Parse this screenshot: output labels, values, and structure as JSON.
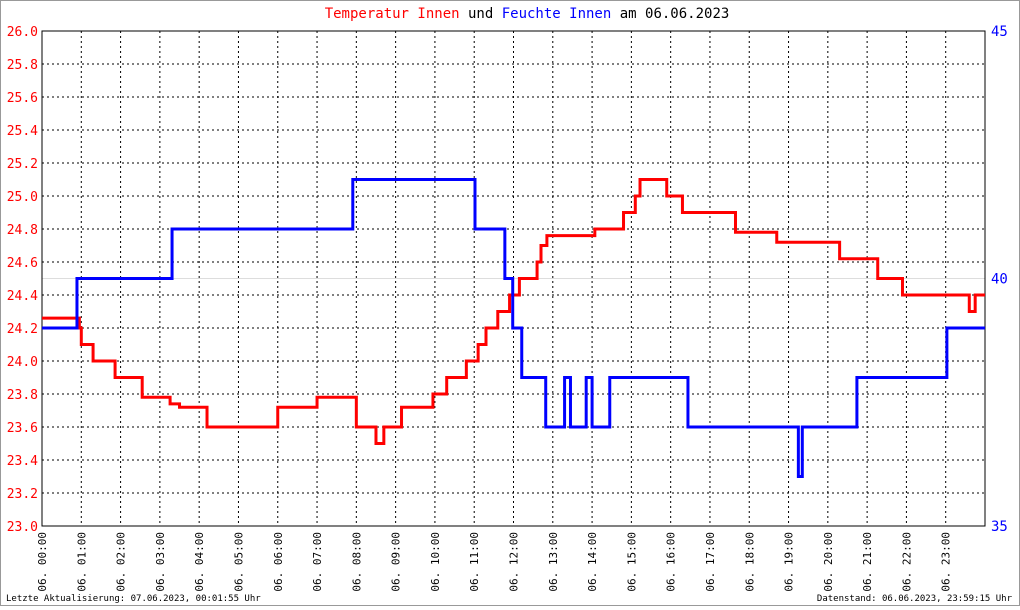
{
  "chart_data": {
    "type": "line",
    "title_joiner": "und",
    "title_suffix": "am 06.06.2023",
    "footer_left": "Letzte Aktualisierung: 07.06.2023, 00:01:55 Uhr",
    "footer_right": "Datenstand: 06.06.2023, 23:59:15 Uhr",
    "xlim": [
      0,
      24
    ],
    "xticks": [
      {
        "value": 0,
        "label": "06. 00:00"
      },
      {
        "value": 1,
        "label": "06. 01:00"
      },
      {
        "value": 2,
        "label": "06. 02:00"
      },
      {
        "value": 3,
        "label": "06. 03:00"
      },
      {
        "value": 4,
        "label": "06. 04:00"
      },
      {
        "value": 5,
        "label": "06. 05:00"
      },
      {
        "value": 6,
        "label": "06. 06:00"
      },
      {
        "value": 7,
        "label": "06. 07:00"
      },
      {
        "value": 8,
        "label": "06. 08:00"
      },
      {
        "value": 9,
        "label": "06. 09:00"
      },
      {
        "value": 10,
        "label": "06. 10:00"
      },
      {
        "value": 11,
        "label": "06. 11:00"
      },
      {
        "value": 12,
        "label": "06. 12:00"
      },
      {
        "value": 13,
        "label": "06. 13:00"
      },
      {
        "value": 14,
        "label": "06. 14:00"
      },
      {
        "value": 15,
        "label": "06. 15:00"
      },
      {
        "value": 16,
        "label": "06. 16:00"
      },
      {
        "value": 17,
        "label": "06. 17:00"
      },
      {
        "value": 18,
        "label": "06. 18:00"
      },
      {
        "value": 19,
        "label": "06. 19:00"
      },
      {
        "value": 20,
        "label": "06. 20:00"
      },
      {
        "value": 21,
        "label": "06. 21:00"
      },
      {
        "value": 22,
        "label": "06. 22:00"
      },
      {
        "value": 23,
        "label": "06. 23:00"
      }
    ],
    "ylim": [
      23.0,
      26.0
    ],
    "yticks": [
      {
        "value": 23.0,
        "label": "23.0"
      },
      23.2,
      23.4,
      23.6,
      23.8,
      {
        "value": 24.0,
        "label": "24.0"
      },
      24.2,
      24.4,
      24.6,
      24.8,
      {
        "value": 25.0,
        "label": "25.0"
      },
      25.2,
      25.4,
      25.6,
      25.8,
      {
        "value": 26.0,
        "label": "26.0"
      }
    ],
    "y2lim": [
      35,
      45
    ],
    "y2ticks": [
      35,
      40,
      45
    ],
    "grid": true,
    "y_color": "#ff0000",
    "y2_color": "#0000ff",
    "series": [
      {
        "name": "Temperatur Innen",
        "color": "#ff0000",
        "x": [
          0,
          0.95,
          0.95,
          1.0,
          1.0,
          1.3,
          1.3,
          1.86,
          1.86,
          2.55,
          2.55,
          3.26,
          3.26,
          3.5,
          3.5,
          4.2,
          4.2,
          6.0,
          6.0,
          7.0,
          7.0,
          8.0,
          8.0,
          8.5,
          8.5,
          8.7,
          8.7,
          9.15,
          9.15,
          9.95,
          9.95,
          10.3,
          10.3,
          10.8,
          10.8,
          11.1,
          11.1,
          11.3,
          11.3,
          11.6,
          11.6,
          11.9,
          11.9,
          12.15,
          12.15,
          12.6,
          12.6,
          12.7,
          12.7,
          12.85,
          12.85,
          14.07,
          14.07,
          14.8,
          14.8,
          15.1,
          15.1,
          15.22,
          15.22,
          15.9,
          15.9,
          16.3,
          16.3,
          17.65,
          17.65,
          18.7,
          18.7,
          20.3,
          20.3,
          21.27,
          21.27,
          21.9,
          21.9,
          23.6,
          23.6,
          23.75,
          23.75,
          24
        ],
        "values": [
          24.26,
          24.26,
          24.2,
          24.2,
          24.1,
          24.1,
          24.0,
          24.0,
          23.9,
          23.9,
          23.78,
          23.78,
          23.74,
          23.74,
          23.72,
          23.72,
          23.6,
          23.6,
          23.72,
          23.72,
          23.78,
          23.78,
          23.6,
          23.6,
          23.5,
          23.5,
          23.6,
          23.6,
          23.72,
          23.72,
          23.8,
          23.8,
          23.9,
          23.9,
          24.0,
          24.0,
          24.1,
          24.1,
          24.2,
          24.2,
          24.3,
          24.3,
          24.4,
          24.4,
          24.5,
          24.5,
          24.6,
          24.6,
          24.7,
          24.7,
          24.76,
          24.76,
          24.8,
          24.8,
          24.9,
          24.9,
          25.0,
          25.0,
          25.1,
          25.1,
          25.0,
          25.0,
          24.9,
          24.9,
          24.78,
          24.78,
          24.72,
          24.72,
          24.62,
          24.62,
          24.5,
          24.5,
          24.4,
          24.4,
          24.3,
          24.3,
          24.4,
          24.4
        ]
      },
      {
        "name": "Feuchte Innen",
        "color": "#0000ff",
        "axis": "y2",
        "x": [
          0,
          0.89,
          0.89,
          3.31,
          3.31,
          7.91,
          7.91,
          11.02,
          11.02,
          11.78,
          11.78,
          11.98,
          11.98,
          12.21,
          12.21,
          12.82,
          12.82,
          13.3,
          13.3,
          13.45,
          13.45,
          13.85,
          13.85,
          14.0,
          14.0,
          14.45,
          14.45,
          16.44,
          16.44,
          19.25,
          19.25,
          19.35,
          19.35,
          20.74,
          20.74,
          23.03,
          23.03,
          24
        ],
        "values": [
          39,
          39,
          40,
          40,
          41,
          41,
          42,
          42,
          41,
          41,
          40,
          40,
          39,
          39,
          38,
          38,
          37,
          37,
          38,
          38,
          37,
          37,
          38,
          38,
          37,
          37,
          38,
          38,
          37,
          37,
          36,
          36,
          37,
          37,
          38,
          38,
          39,
          39
        ]
      }
    ]
  }
}
